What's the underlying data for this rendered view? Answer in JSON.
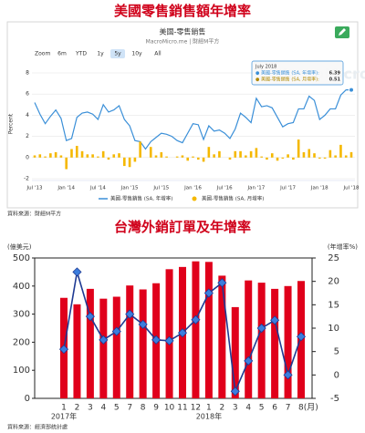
{
  "chart_data": [
    {
      "type": "line",
      "heading": "美國零售銷售額年增率",
      "title": "美國-零售銷售",
      "subtitle": "MacroMicro.me | 財經M平方",
      "watermark": "MacroMicro",
      "zoom_label": "Zoom",
      "zoom_buttons": [
        "6m",
        "YTD",
        "1y",
        "5y",
        "10y",
        "All"
      ],
      "zoom_selected": "5y",
      "y_label": "Percent",
      "source": "資料來源：財經M平方",
      "categories": [
        "Jul '13",
        null,
        null,
        null,
        null,
        null,
        "Jan '14",
        null,
        null,
        null,
        null,
        null,
        "Jul '14",
        null,
        null,
        null,
        null,
        null,
        "Jan '15",
        null,
        null,
        null,
        null,
        null,
        "Jul '15",
        null,
        null,
        null,
        null,
        null,
        "Jan '16",
        null,
        null,
        null,
        null,
        null,
        "Jul '16",
        null,
        null,
        null,
        null,
        null,
        "Jan '17",
        null,
        null,
        null,
        null,
        null,
        "Jul '17",
        null,
        null,
        null,
        null,
        null,
        "Jan '18",
        null,
        null,
        null,
        null,
        null,
        "Jul '18"
      ],
      "ylim": [
        -2,
        8
      ],
      "yticks": [
        -2,
        0,
        2,
        4,
        6,
        8
      ],
      "grid": true,
      "series": [
        {
          "name": "美國-零售銷售 (SA, 年增率)",
          "type": "line",
          "color": "#3a8fd8",
          "values": [
            5.2,
            4.1,
            3.2,
            3.9,
            4.5,
            3.7,
            1.6,
            1.8,
            3.8,
            4.2,
            4.3,
            4.1,
            3.6,
            5.0,
            4.3,
            4.5,
            4.9,
            3.6,
            3.0,
            1.6,
            1.5,
            0.8,
            1.5,
            1.9,
            2.3,
            2.2,
            2.0,
            1.6,
            1.4,
            2.3,
            3.2,
            3.1,
            1.7,
            3.0,
            2.5,
            2.6,
            2.3,
            1.8,
            2.7,
            4.2,
            3.8,
            3.3,
            5.6,
            4.8,
            4.9,
            4.7,
            3.8,
            2.9,
            3.2,
            3.3,
            4.6,
            4.6,
            5.8,
            5.4,
            3.6,
            4.0,
            4.6,
            4.6,
            5.9,
            6.4,
            6.39
          ]
        },
        {
          "name": "美國-零售銷售 (SA, 月增率)",
          "type": "bar",
          "color": "#f5b800",
          "values": [
            0.2,
            0.3,
            0.1,
            0.4,
            0.5,
            0.2,
            -1.1,
            0.8,
            1.1,
            0.6,
            0.3,
            0.3,
            0.1,
            0.6,
            -0.2,
            0.3,
            0.4,
            -0.8,
            -0.9,
            -0.4,
            1.5,
            0.0,
            1.0,
            0.2,
            0.5,
            0.1,
            0.0,
            0.1,
            0.2,
            -0.3,
            0.1,
            -0.2,
            -0.4,
            1.0,
            0.3,
            0.6,
            0.0,
            -0.2,
            0.6,
            0.6,
            0.2,
            0.6,
            0.9,
            0.1,
            -0.2,
            0.4,
            -0.3,
            -0.1,
            0.3,
            -0.2,
            1.7,
            0.5,
            0.8,
            0.4,
            -0.1,
            -0.1,
            0.7,
            0.2,
            1.2,
            0.2,
            0.51
          ]
        }
      ],
      "tooltip": {
        "title": "July 2018",
        "items": [
          {
            "label": "● 美國-零售銷售 (SA, 年增率):",
            "value": 6.39
          },
          {
            "label": "● 美國-零售銷售 (SA, 月增率):",
            "value": 0.51
          }
        ]
      }
    },
    {
      "type": "bar",
      "heading": "台灣外銷訂單及年增率",
      "y_label": "(億美元)",
      "y2_label": "(年增率%)",
      "source": "資料來源：經濟部統計處",
      "categories": [
        "1",
        "2",
        "3",
        "4",
        "5",
        "7",
        "8",
        "9",
        "10",
        "11",
        "12",
        "1",
        "2",
        "3",
        "4",
        "5",
        "6",
        "7",
        "8(月)"
      ],
      "year_labels": [
        "2017年",
        "2018年"
      ],
      "ylim": [
        0,
        500
      ],
      "yticks": [
        0,
        100,
        200,
        300,
        400,
        500
      ],
      "y2lim": [
        -5,
        25
      ],
      "y2ticks": [
        -5,
        0,
        5,
        10,
        15,
        20,
        25
      ],
      "series": [
        {
          "type": "bar",
          "color": "#e0001b",
          "values": [
            358,
            335,
            390,
            355,
            362,
            402,
            388,
            410,
            460,
            468,
            488,
            486,
            437,
            325,
            420,
            412,
            390,
            400,
            418
          ]
        },
        {
          "type": "line",
          "axis": "y2",
          "color": "#1f3a93",
          "marker_color": "#3b7ddd",
          "values": [
            5.5,
            22,
            12.5,
            7.5,
            9.3,
            13,
            10.8,
            7.5,
            7.3,
            9,
            11.8,
            17.5,
            19.7,
            -3.5,
            3,
            10,
            11.7,
            0,
            8.2
          ]
        }
      ]
    }
  ]
}
